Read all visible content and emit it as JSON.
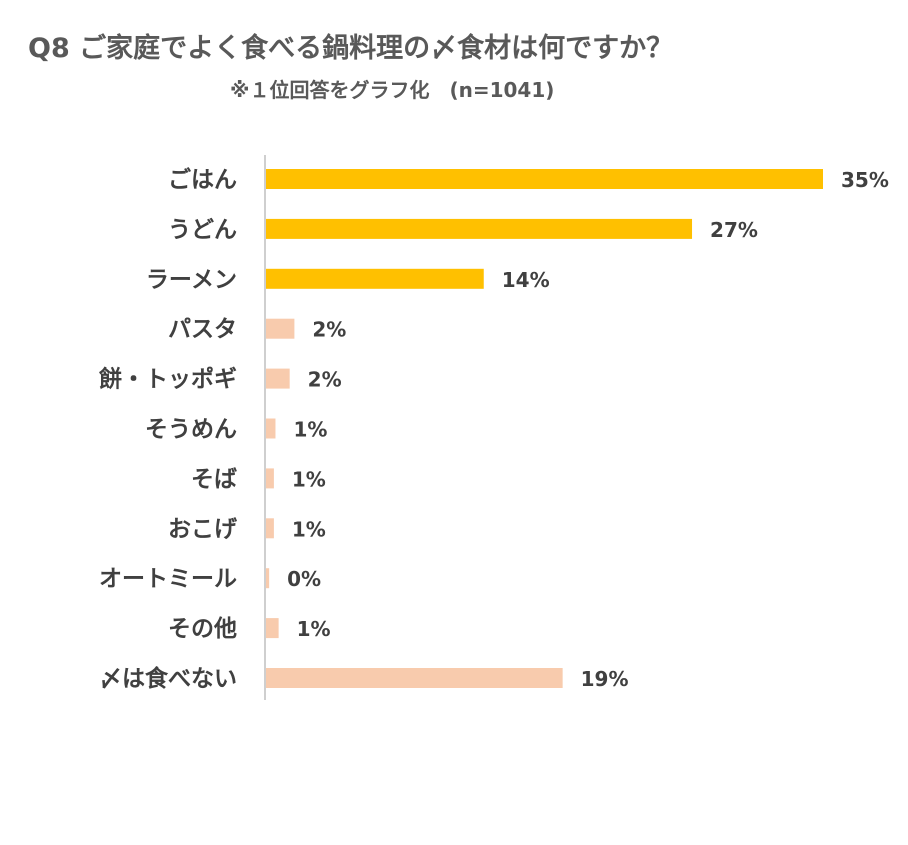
{
  "title": "Q8 ご家庭でよく食べる鍋料理の〆食材は何ですか？",
  "subtitle": "※１位回答をグラフ化　(n=1041)",
  "colors": {
    "highlight": "#FFC000",
    "normal": "#F8CBAD",
    "axis": "#BFBFBF",
    "text": "#404040"
  },
  "chart_data": {
    "type": "bar",
    "orientation": "horizontal",
    "title": "Q8 ご家庭でよく食べる鍋料理の〆食材は何ですか？",
    "subtitle": "※１位回答をグラフ化　(n=1041)",
    "categories": [
      "ごはん",
      "うどん",
      "ラーメン",
      "パスタ",
      "餅・トッポギ",
      "そうめん",
      "そば",
      "おこげ",
      "オートミール",
      "その他",
      "〆は食べない"
    ],
    "values": [
      35,
      27,
      14,
      2,
      2,
      1,
      1,
      1,
      0,
      1,
      19
    ],
    "value_labels": [
      "35%",
      "27%",
      "14%",
      "2%",
      "2%",
      "1%",
      "1%",
      "1%",
      "0%",
      "1%",
      "19%"
    ],
    "highlighted": [
      true,
      true,
      true,
      false,
      false,
      false,
      false,
      false,
      false,
      false,
      false
    ],
    "raw_values": [
      35.3,
      27.0,
      13.8,
      1.8,
      1.5,
      0.6,
      0.5,
      0.5,
      0.2,
      0.8,
      18.8
    ],
    "unit": "%",
    "xlabel": "",
    "ylabel": "",
    "grid": false,
    "legend": "none"
  }
}
